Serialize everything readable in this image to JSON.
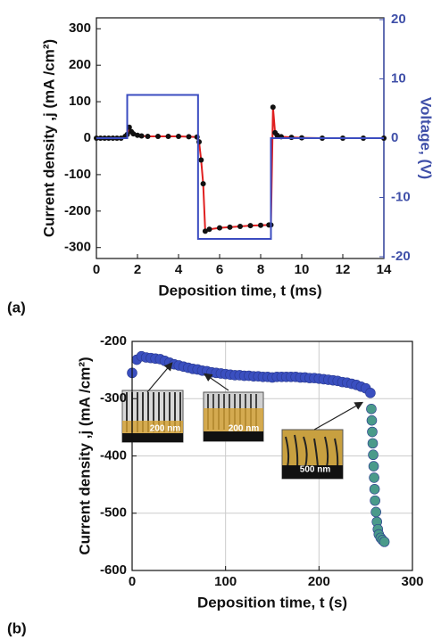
{
  "chart_data": [
    {
      "type": "line",
      "panel_label": "(a)",
      "x_label": "Deposition time, t (ms)",
      "y_label": "Current density ,j (mA /cm²)",
      "y2_label": "Voltage, (V)",
      "xlim": [
        0,
        14
      ],
      "xticks": [
        0,
        2,
        4,
        6,
        8,
        10,
        12,
        14
      ],
      "ylim": [
        -330,
        330
      ],
      "yticks": [
        -300,
        -200,
        -100,
        0,
        100,
        200,
        300
      ],
      "y2lim": [
        -20.3,
        20.3
      ],
      "y2ticks": [
        -20,
        -10,
        0,
        10,
        20
      ],
      "y2_color": "#3f4fa8",
      "grid": false,
      "series": [
        {
          "color": "#e02020",
          "marker_color": "#111111",
          "x": [
            0,
            0.2,
            0.4,
            0.6,
            0.8,
            1.0,
            1.2,
            1.4,
            1.5,
            1.6,
            1.7,
            1.8,
            2.0,
            2.2,
            2.5,
            3.0,
            3.5,
            4.0,
            4.5,
            4.9,
            5.0,
            5.1,
            5.2,
            5.3,
            5.5,
            6.0,
            6.5,
            7.0,
            7.5,
            8.0,
            8.4,
            8.5,
            8.6,
            8.7,
            8.8,
            9.0,
            9.5,
            10,
            11,
            12,
            13,
            14
          ],
          "values": [
            0,
            0,
            0,
            0,
            0,
            0,
            0,
            5,
            10,
            30,
            18,
            12,
            8,
            6,
            5,
            5,
            5,
            5,
            4,
            3,
            -10,
            -60,
            -125,
            -255,
            -250,
            -246,
            -244,
            -242,
            -240,
            -239,
            -238,
            -238,
            85,
            15,
            8,
            4,
            2,
            1,
            0,
            0,
            0,
            0
          ]
        },
        {
          "color": "#3b4cc0",
          "axis": "y2",
          "x": [
            0,
            1.5,
            1.5,
            4.95,
            4.95,
            8.5,
            8.5,
            14
          ],
          "values": [
            0,
            0,
            7.3,
            7.3,
            -17,
            -17,
            0,
            0
          ]
        }
      ]
    },
    {
      "type": "scatter",
      "panel_label": "(b)",
      "x_label": "Deposition time, t (s)",
      "y_label": "Current density ,j (mA /cm²)",
      "xlim": [
        0,
        300
      ],
      "xticks": [
        0,
        100,
        200,
        300
      ],
      "ylim": [
        -600,
        -200
      ],
      "yticks": [
        -600,
        -500,
        -400,
        -300,
        -200
      ],
      "grid": true,
      "annotations": [
        "200 nm",
        "200 nm",
        "500 nm"
      ],
      "series": [
        {
          "color": "#3a4fc0",
          "x": [
            0,
            5,
            10,
            15,
            20,
            25,
            30,
            35,
            40,
            45,
            50,
            55,
            60,
            65,
            70,
            75,
            80,
            85,
            90,
            95,
            100,
            105,
            110,
            115,
            120,
            125,
            130,
            135,
            140,
            145,
            150,
            155,
            160,
            165,
            170,
            175,
            180,
            185,
            190,
            195,
            200,
            205,
            210,
            215,
            220,
            225,
            230,
            235,
            240,
            245,
            250,
            255
          ],
          "values": [
            -255,
            -232,
            -226,
            -228,
            -229,
            -230,
            -231,
            -234,
            -237,
            -240,
            -242,
            -244,
            -246,
            -248,
            -249,
            -251,
            -252,
            -254,
            -255,
            -256,
            -257,
            -258,
            -259,
            -259,
            -260,
            -260,
            -261,
            -261,
            -262,
            -262,
            -263,
            -262,
            -262,
            -262,
            -262,
            -262,
            -263,
            -263,
            -264,
            -264,
            -265,
            -266,
            -267,
            -268,
            -269,
            -271,
            -272,
            -274,
            -276,
            -279,
            -282,
            -290
          ]
        },
        {
          "color": "#4a9a8a",
          "x": [
            256,
            256.5,
            257,
            257.5,
            258,
            258.5,
            259,
            259.5,
            260,
            261,
            262,
            263,
            264,
            266,
            268,
            270
          ],
          "values": [
            -318,
            -338,
            -358,
            -378,
            -398,
            -418,
            -438,
            -458,
            -478,
            -498,
            -515,
            -528,
            -537,
            -543,
            -547,
            -550
          ]
        }
      ]
    }
  ]
}
